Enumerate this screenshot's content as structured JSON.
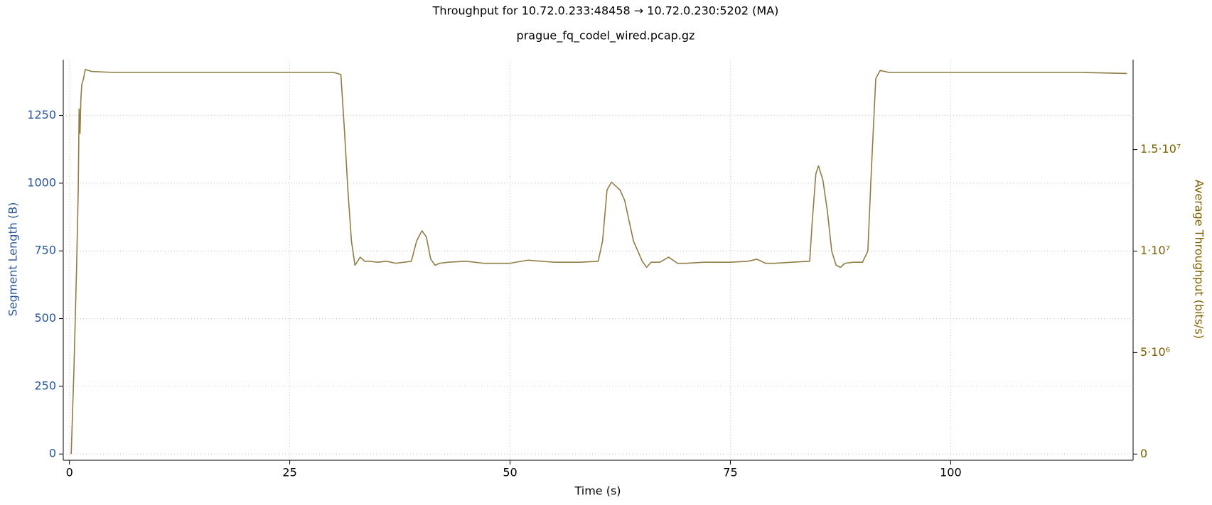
{
  "chart_data": {
    "type": "line",
    "title": "Throughput for 10.72.0.233:48458 → 10.72.0.230:5202 (MA)",
    "subtitle": "prague_fq_codel_wired.pcap.gz",
    "x_label": "Time (s)",
    "y_label": "Segment Length (B)",
    "y2_label": "Average Throughput (bits/s)",
    "xlim": [
      -0.7,
      120.7
    ],
    "xticks": [
      0,
      25,
      50,
      75,
      100
    ],
    "ylim": [
      -23,
      1456
    ],
    "yticks": [
      0,
      250,
      500,
      750,
      1000,
      1250
    ],
    "y2lim": [
      -305000,
      19430000
    ],
    "y2ticks": [
      0,
      {
        "value": 5000000,
        "label": "5·10⁶"
      },
      {
        "value": 10000000,
        "label": "1·10⁷"
      },
      {
        "value": 15000000,
        "label": "1.5·10⁷"
      }
    ],
    "grid": true,
    "y_color": "#2b5797",
    "y2_color": "#7d5f00",
    "x": [
      0.2,
      0.5,
      0.8,
      1.0,
      1.1,
      1.2,
      1.3,
      1.4,
      1.6,
      1.8,
      2.5,
      5,
      10,
      15,
      20,
      25,
      28,
      30,
      30.8,
      31.2,
      31.6,
      32,
      32.4,
      33,
      33.5,
      34,
      35,
      36,
      37,
      38,
      38.8,
      39.4,
      40,
      40.5,
      41,
      41.5,
      42,
      43,
      45,
      47,
      50,
      52,
      55,
      58,
      60,
      60.5,
      61,
      61.5,
      62,
      62.5,
      63,
      63.5,
      64,
      64.5,
      65,
      65.5,
      66,
      67,
      68,
      69,
      70,
      72,
      75,
      77,
      78,
      79,
      80,
      82,
      84,
      84.3,
      84.7,
      85,
      85.5,
      86,
      86.5,
      87,
      87.5,
      88,
      89,
      90,
      90.6,
      91,
      91.5,
      92,
      93,
      95,
      100,
      105,
      110,
      115,
      120
    ],
    "series": [
      {
        "color": "#8f7d45",
        "axis": "y2",
        "values": [
          0,
          4000000,
          9000000,
          13000000,
          17000000,
          15800000,
          17500000,
          18200000,
          18500000,
          18950000,
          18850000,
          18800000,
          18800000,
          18800000,
          18800000,
          18800000,
          18800000,
          18800000,
          18700000,
          16000000,
          13000000,
          10500000,
          9300000,
          9700000,
          9500000,
          9500000,
          9450000,
          9500000,
          9400000,
          9450000,
          9500000,
          10500000,
          11000000,
          10700000,
          9600000,
          9300000,
          9400000,
          9450000,
          9500000,
          9400000,
          9400000,
          9550000,
          9450000,
          9450000,
          9500000,
          10500000,
          13000000,
          13400000,
          13200000,
          13000000,
          12500000,
          11500000,
          10500000,
          10000000,
          9500000,
          9200000,
          9450000,
          9450000,
          9700000,
          9400000,
          9400000,
          9450000,
          9450000,
          9500000,
          9600000,
          9400000,
          9400000,
          9450000,
          9500000,
          11500000,
          13800000,
          14200000,
          13500000,
          12000000,
          10000000,
          9300000,
          9200000,
          9400000,
          9450000,
          9450000,
          10000000,
          14000000,
          18500000,
          18900000,
          18800000,
          18800000,
          18800000,
          18800000,
          18800000,
          18800000,
          18750000
        ]
      }
    ]
  }
}
